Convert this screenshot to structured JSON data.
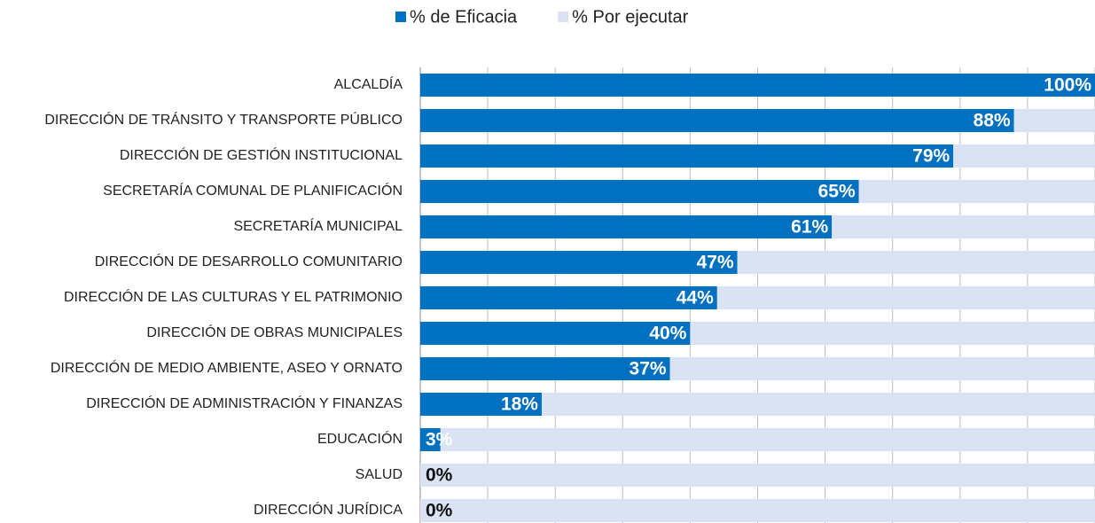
{
  "chart_data": {
    "type": "bar",
    "orientation": "horizontal",
    "stacked": true,
    "categories": [
      "ALCALDÍA",
      "DIRECCIÓN DE TRÁNSITO Y TRANSPORTE PÚBLICO",
      "DIRECCIÓN DE GESTIÓN INSTITUCIONAL",
      "SECRETARÍA COMUNAL DE PLANIFICACIÓN",
      "SECRETARÍA MUNICIPAL",
      "DIRECCIÓN DE DESARROLLO COMUNITARIO",
      "DIRECCIÓN DE LAS CULTURAS Y EL PATRIMONIO",
      "DIRECCIÓN DE OBRAS MUNICIPALES",
      "DIRECCIÓN DE MEDIO AMBIENTE, ASEO Y ORNATO",
      "DIRECCIÓN DE ADMINISTRACIÓN Y FINANZAS",
      "EDUCACIÓN",
      "SALUD",
      "DIRECCIÓN JURÍDICA"
    ],
    "series": [
      {
        "name": "% de Eficacia",
        "color": "#0070c0",
        "values": [
          100,
          88,
          79,
          65,
          61,
          47,
          44,
          40,
          37,
          18,
          3,
          0,
          0
        ],
        "value_labels": [
          "100%",
          "88%",
          "79%",
          "65%",
          "61%",
          "47%",
          "44%",
          "40%",
          "37%",
          "18%",
          "3%",
          "0%",
          "0%"
        ]
      },
      {
        "name": "% Por ejecutar",
        "color": "#dae3f3",
        "values": [
          0,
          12,
          21,
          35,
          39,
          53,
          56,
          60,
          63,
          82,
          97,
          100,
          100
        ]
      }
    ],
    "xlim": [
      0,
      100
    ],
    "xticks": [
      0,
      10,
      20,
      30,
      40,
      50,
      60,
      70,
      80,
      90,
      100
    ],
    "grid": true,
    "legend": "top"
  }
}
